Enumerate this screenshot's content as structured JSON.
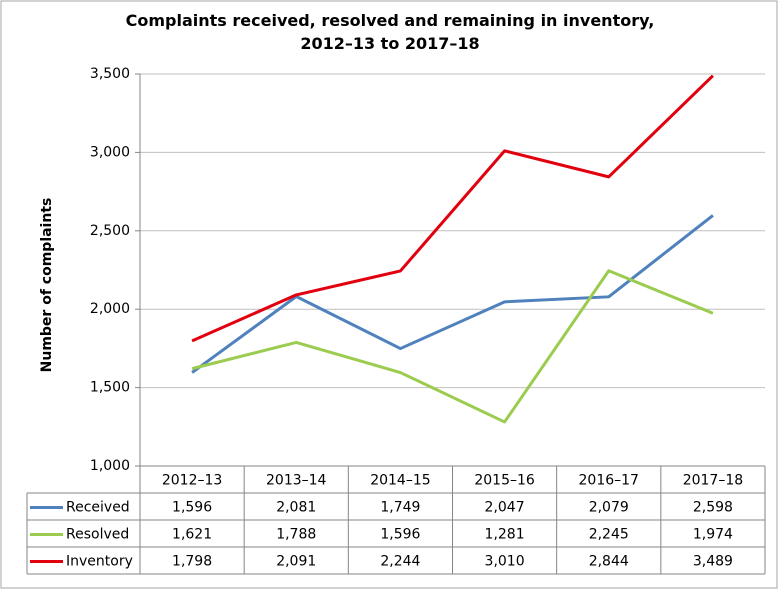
{
  "chart_data": {
    "type": "line",
    "title": "Complaints received, resolved and remaining in inventory, 2012–13 to 2017–18",
    "y_label": "Number of complaints",
    "categories": [
      "2012–13",
      "2013–14",
      "2014–15",
      "2015–16",
      "2016–17",
      "2017–18"
    ],
    "series": [
      {
        "name": "Received",
        "color": "#4f81bd",
        "values": [
          1596,
          2081,
          1749,
          2047,
          2079,
          2598
        ],
        "value_labels": [
          "1,596",
          "2,081",
          "1,749",
          "2,047",
          "2,079",
          "2,598"
        ]
      },
      {
        "name": "Resolved",
        "color": "#9bcb4f",
        "values": [
          1621,
          1788,
          1596,
          1281,
          2245,
          1974
        ],
        "value_labels": [
          "1,621",
          "1,788",
          "1,596",
          "1,281",
          "2,245",
          "1,974"
        ]
      },
      {
        "name": "Inventory",
        "color": "#e2000f",
        "values": [
          1798,
          2091,
          2244,
          3010,
          2844,
          3489
        ],
        "value_labels": [
          "1,798",
          "2,091",
          "2,244",
          "3,010",
          "2,844",
          "3,489"
        ]
      }
    ],
    "ylim": [
      1000,
      3500
    ],
    "yticks": [
      {
        "value": 1000,
        "label": "1,000"
      },
      {
        "value": 1500,
        "label": "1,500"
      },
      {
        "value": 2000,
        "label": "2,000"
      },
      {
        "value": 2500,
        "label": "2,500"
      },
      {
        "value": 3000,
        "label": "3,000"
      },
      {
        "value": 3500,
        "label": "3,500"
      }
    ],
    "grid": true
  }
}
